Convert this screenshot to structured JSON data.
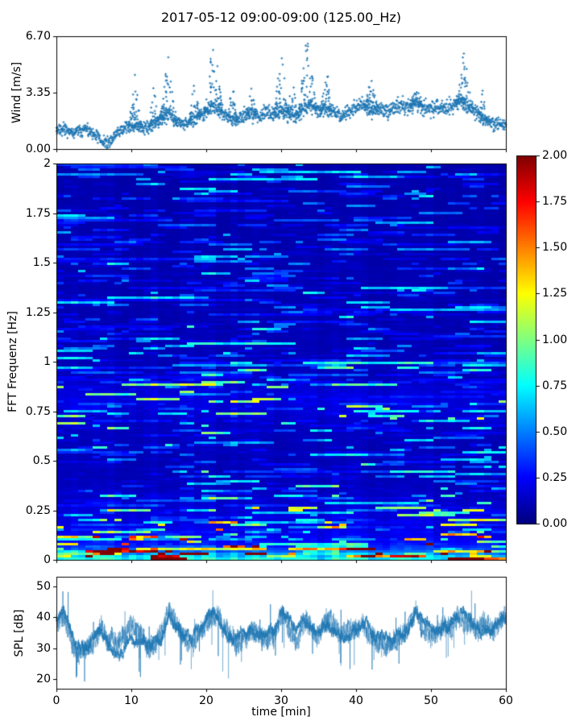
{
  "figure": {
    "title": "2017-05-12 09:00-09:00 (125.00_Hz)",
    "background": "#ffffff",
    "spine_color": "#000000",
    "text_color": "#000000",
    "accent_color": "#1f77b4"
  },
  "seed": 20170512,
  "chart_data": [
    {
      "id": "wind",
      "type": "scatter",
      "marker": "plus",
      "color": "#1f77b4",
      "ylabel": "Wind [m/s]",
      "ylim": [
        0,
        6.7
      ],
      "ytick_values": [
        0,
        3.35,
        6.7
      ],
      "ytick_labels": [
        "0.00",
        "3.35",
        "6.70"
      ],
      "xlim": [
        0,
        60
      ],
      "xtick_values": [
        0,
        10,
        20,
        30,
        40,
        50,
        60
      ],
      "n_points": 1750,
      "noise_sd": 0.42,
      "mean_profile": [
        1.1,
        1.2,
        1.0,
        1.1,
        1.2,
        0.9,
        0.5,
        0.4,
        0.9,
        1.3,
        1.4,
        1.3,
        1.2,
        1.5,
        1.8,
        2.1,
        1.7,
        1.4,
        1.7,
        1.9,
        2.2,
        2.6,
        2.2,
        1.9,
        1.7,
        2.0,
        2.1,
        1.9,
        2.2,
        2.0,
        2.3,
        2.1,
        1.9,
        2.4,
        2.6,
        2.2,
        2.4,
        2.2,
        2.0,
        2.3,
        2.5,
        2.6,
        2.3,
        2.5,
        2.2,
        2.4,
        2.6,
        2.5,
        2.7,
        2.5,
        2.3,
        2.5,
        2.4,
        2.6,
        2.8,
        2.5,
        2.2,
        1.8,
        1.6,
        1.5,
        1.4
      ],
      "spikes": [
        {
          "t": 10.5,
          "peak": 4.6,
          "w": 0.7
        },
        {
          "t": 13.0,
          "peak": 4.0,
          "w": 0.5
        },
        {
          "t": 15.0,
          "peak": 5.6,
          "w": 0.9
        },
        {
          "t": 18.5,
          "peak": 4.4,
          "w": 0.6
        },
        {
          "t": 21.0,
          "peak": 6.7,
          "w": 1.0
        },
        {
          "t": 23.5,
          "peak": 4.0,
          "w": 0.5
        },
        {
          "t": 26.0,
          "peak": 4.2,
          "w": 0.5
        },
        {
          "t": 30.0,
          "peak": 5.9,
          "w": 0.8
        },
        {
          "t": 31.5,
          "peak": 5.0,
          "w": 0.5
        },
        {
          "t": 33.5,
          "peak": 6.7,
          "w": 1.0
        },
        {
          "t": 36.0,
          "peak": 5.0,
          "w": 0.6
        },
        {
          "t": 42.0,
          "peak": 4.3,
          "w": 0.7
        },
        {
          "t": 48.0,
          "peak": 3.9,
          "w": 0.6
        },
        {
          "t": 54.5,
          "peak": 5.9,
          "w": 0.9
        },
        {
          "t": 57.0,
          "peak": 3.6,
          "w": 0.5
        }
      ]
    },
    {
      "id": "spectrogram",
      "type": "heatmap",
      "colormap": "jet",
      "ylabel": "FFT Frequenz [Hz]",
      "ylim": [
        0,
        2
      ],
      "ytick_values": [
        0,
        0.25,
        0.5,
        0.75,
        1,
        1.25,
        1.5,
        1.75,
        2
      ],
      "ytick_labels": [
        "0",
        "0.25",
        "0.5",
        "0.75",
        "1",
        "1.25",
        "1.5",
        "1.75",
        "2"
      ],
      "xlim": [
        0,
        60
      ],
      "xtick_values": [
        0,
        10,
        20,
        30,
        40,
        50,
        60
      ],
      "vmin": 0,
      "vmax": 2,
      "time_bins": 62,
      "freq_bins": 164,
      "freq_profile": [
        [
          0,
          1.95
        ],
        [
          0.012,
          1.85
        ],
        [
          0.025,
          1.5
        ],
        [
          0.04,
          1.15
        ],
        [
          0.06,
          0.9
        ],
        [
          0.08,
          0.7
        ],
        [
          0.12,
          0.55
        ],
        [
          0.18,
          0.48
        ],
        [
          0.25,
          0.44
        ],
        [
          0.32,
          0.33
        ],
        [
          0.42,
          0.28
        ],
        [
          0.55,
          0.27
        ],
        [
          0.68,
          0.32
        ],
        [
          0.78,
          0.46
        ],
        [
          0.84,
          0.44
        ],
        [
          0.92,
          0.3
        ],
        [
          1.05,
          0.26
        ],
        [
          1.25,
          0.24
        ],
        [
          1.5,
          0.23
        ],
        [
          1.75,
          0.22
        ],
        [
          2,
          0.22
        ]
      ],
      "colorbar": {
        "tick_values": [
          0,
          0.25,
          0.5,
          0.75,
          1,
          1.25,
          1.5,
          1.75,
          2
        ],
        "tick_labels": [
          "0.00",
          "0.25",
          "0.50",
          "0.75",
          "1.00",
          "1.25",
          "1.50",
          "1.75",
          "2.00"
        ]
      }
    },
    {
      "id": "spl",
      "type": "line",
      "color": "#1f77b4",
      "ylabel": "SPL [dB]",
      "xlabel": "time [min]",
      "ylim": [
        17,
        53
      ],
      "ytick_values": [
        20,
        30,
        40,
        50
      ],
      "ytick_labels": [
        "20",
        "30",
        "40",
        "50"
      ],
      "xlim": [
        0,
        60
      ],
      "xtick_values": [
        0,
        10,
        20,
        30,
        40,
        50,
        60
      ],
      "xtick_labels": [
        "0",
        "10",
        "20",
        "30",
        "40",
        "50",
        "60"
      ],
      "band_halfwidth": 3.2,
      "n_points": 3600,
      "mean_profile": [
        38,
        40,
        31,
        28,
        30,
        34,
        38,
        33,
        30,
        32,
        36,
        34,
        32,
        33,
        35,
        42,
        38,
        34,
        33,
        35,
        38,
        42,
        37,
        34,
        33,
        35,
        36,
        34,
        35,
        36,
        41,
        38,
        35,
        38,
        37,
        35,
        39,
        36,
        34,
        35,
        37,
        39,
        36,
        34,
        31,
        32,
        34,
        36,
        42,
        38,
        35,
        36,
        36,
        37,
        40,
        38,
        36,
        38,
        36,
        38,
        40
      ]
    }
  ]
}
